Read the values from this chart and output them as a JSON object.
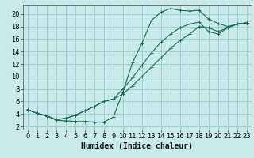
{
  "title": "",
  "xlabel": "Humidex (Indice chaleur)",
  "bg_color": "#c8eaea",
  "grid_color": "#96cccc",
  "line_color": "#1a6655",
  "xlim": [
    -0.5,
    23.5
  ],
  "ylim": [
    1.5,
    21.5
  ],
  "xticks": [
    0,
    1,
    2,
    3,
    4,
    5,
    6,
    7,
    8,
    9,
    10,
    11,
    12,
    13,
    14,
    15,
    16,
    17,
    18,
    19,
    20,
    21,
    22,
    23
  ],
  "yticks": [
    2,
    4,
    6,
    8,
    10,
    12,
    14,
    16,
    18,
    20
  ],
  "curve1_x": [
    0,
    1,
    2,
    3,
    4,
    5,
    6,
    7,
    8,
    9,
    10,
    11,
    12,
    13,
    14,
    15,
    16,
    17,
    18,
    19,
    20,
    21,
    22,
    23
  ],
  "curve1_y": [
    4.7,
    4.1,
    3.7,
    3.0,
    2.9,
    2.8,
    2.8,
    2.7,
    2.7,
    3.5,
    7.5,
    12.2,
    15.3,
    19.0,
    20.3,
    20.9,
    20.6,
    20.5,
    20.6,
    19.2,
    18.5,
    18.0,
    18.4,
    18.6
  ],
  "curve2_x": [
    0,
    1,
    2,
    3,
    4,
    5,
    6,
    7,
    8,
    9,
    10,
    11,
    12,
    13,
    14,
    15,
    16,
    17,
    18,
    19,
    20,
    21,
    22,
    23
  ],
  "curve2_y": [
    4.7,
    4.1,
    3.7,
    3.1,
    3.3,
    3.8,
    4.5,
    5.2,
    6.0,
    6.4,
    8.0,
    9.8,
    11.8,
    13.8,
    15.5,
    16.8,
    17.8,
    18.4,
    18.7,
    17.2,
    16.8,
    17.8,
    18.4,
    18.6
  ],
  "curve3_x": [
    0,
    1,
    2,
    3,
    4,
    5,
    6,
    7,
    8,
    9,
    10,
    11,
    12,
    13,
    14,
    15,
    16,
    17,
    18,
    19,
    20,
    21,
    22,
    23
  ],
  "curve3_y": [
    4.7,
    4.1,
    3.7,
    3.1,
    3.3,
    3.8,
    4.5,
    5.2,
    6.0,
    6.4,
    7.2,
    8.5,
    10.0,
    11.5,
    13.0,
    14.5,
    15.8,
    16.8,
    18.0,
    17.8,
    17.2,
    17.8,
    18.4,
    18.6
  ],
  "xlabel_fontsize": 7,
  "tick_fontsize": 6,
  "marker_size": 3,
  "line_width": 0.8
}
